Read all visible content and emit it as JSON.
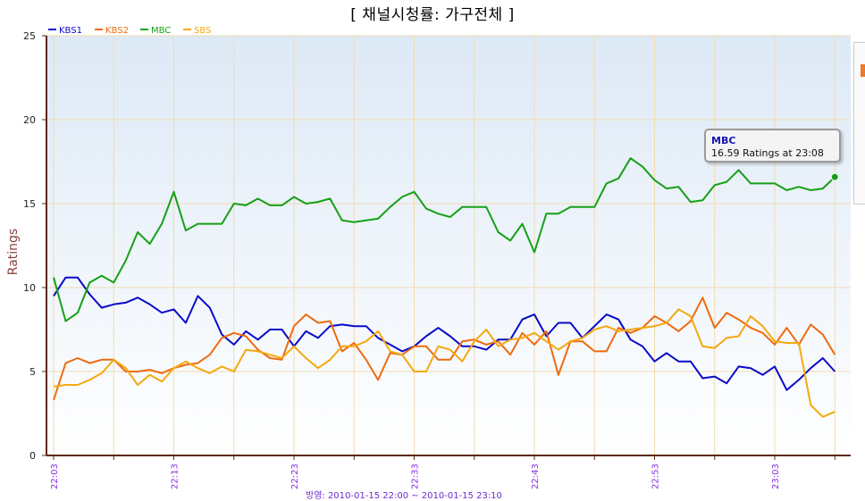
{
  "title": "[ 채널시청률: 가구전체 ]",
  "footer_text": "방영: 2010-01-15 22:00 ~ 2010-01-15 23:10",
  "tooltip": {
    "series": "MBC",
    "text": "16.59 Ratings at 23:08"
  },
  "chart_data": {
    "type": "line",
    "title": "[ 채널시청률: 가구전체 ]",
    "xlabel": "",
    "ylabel": "Ratings",
    "ylim": [
      0,
      25
    ],
    "yticks": [
      0,
      5,
      10,
      15,
      20,
      25
    ],
    "grid": true,
    "legend_position": "top-left",
    "x_start": "22:03",
    "x_interval_minutes": 1,
    "x_tick_labels": [
      "22:03",
      "22:13",
      "22:23",
      "22:33",
      "22:43",
      "22:53",
      "23:03"
    ],
    "series": [
      {
        "name": "KBS1",
        "color": "#0a0ac8",
        "values": [
          9.5,
          10.6,
          10.6,
          9.6,
          8.8,
          9.0,
          9.1,
          9.4,
          9.0,
          8.5,
          8.7,
          7.9,
          9.5,
          8.8,
          7.2,
          6.6,
          7.4,
          6.9,
          7.5,
          7.5,
          6.5,
          7.4,
          7.0,
          7.7,
          7.8,
          7.7,
          7.7,
          7.0,
          6.6,
          6.2,
          6.5,
          7.1,
          7.6,
          7.1,
          6.5,
          6.5,
          6.3,
          6.9,
          6.9,
          8.1,
          8.4,
          7.1,
          7.9,
          7.9,
          7.0,
          7.7,
          8.4,
          8.1,
          6.9,
          6.5,
          5.6,
          6.1,
          5.6,
          5.6,
          4.6,
          4.7,
          4.3,
          5.3,
          5.2,
          4.8,
          5.3,
          3.9,
          4.5,
          5.2,
          5.8,
          5.0
        ]
      },
      {
        "name": "KBS2",
        "color": "#ee6a10",
        "values": [
          3.3,
          5.5,
          5.8,
          5.5,
          5.7,
          5.7,
          5.0,
          5.0,
          5.1,
          4.9,
          5.2,
          5.4,
          5.5,
          6.0,
          7.0,
          7.3,
          7.1,
          6.3,
          5.8,
          5.7,
          7.7,
          8.4,
          7.9,
          8.0,
          6.2,
          6.7,
          5.7,
          4.5,
          6.1,
          6.0,
          6.5,
          6.5,
          5.7,
          5.7,
          6.8,
          6.9,
          6.6,
          6.8,
          6.0,
          7.3,
          6.6,
          7.4,
          4.8,
          6.8,
          6.8,
          6.2,
          6.2,
          7.6,
          7.3,
          7.6,
          8.3,
          7.9,
          7.4,
          8.0,
          9.4,
          7.6,
          8.5,
          8.1,
          7.6,
          7.3,
          6.6,
          7.6,
          6.6,
          7.8,
          7.2,
          6.0
        ]
      },
      {
        "name": "MBC",
        "color": "#16a016",
        "values": [
          10.6,
          8.0,
          8.5,
          10.3,
          10.7,
          10.3,
          11.6,
          13.3,
          12.6,
          13.8,
          15.7,
          13.4,
          13.8,
          13.8,
          13.8,
          15.0,
          14.9,
          15.3,
          14.9,
          14.9,
          15.4,
          15.0,
          15.1,
          15.3,
          14.0,
          13.9,
          14.0,
          14.1,
          14.8,
          15.4,
          15.7,
          14.7,
          14.4,
          14.2,
          14.8,
          14.8,
          14.8,
          13.3,
          12.8,
          13.8,
          12.1,
          14.4,
          14.4,
          14.8,
          14.8,
          14.8,
          16.2,
          16.5,
          17.7,
          17.2,
          16.4,
          15.9,
          16.0,
          15.1,
          15.2,
          16.1,
          16.3,
          17.0,
          16.2,
          16.2,
          16.2,
          15.8,
          16.0,
          15.8,
          15.9,
          16.59
        ]
      },
      {
        "name": "SBS",
        "color": "#f5a810",
        "values": [
          4.1,
          4.2,
          4.2,
          4.5,
          4.9,
          5.7,
          5.2,
          4.2,
          4.8,
          4.4,
          5.2,
          5.6,
          5.2,
          4.9,
          5.3,
          5.0,
          6.3,
          6.2,
          6.0,
          5.8,
          6.5,
          5.8,
          5.2,
          5.7,
          6.5,
          6.5,
          6.8,
          7.4,
          6.2,
          6.0,
          5.0,
          5.0,
          6.5,
          6.3,
          5.6,
          6.8,
          7.5,
          6.5,
          6.9,
          7.0,
          7.3,
          6.8,
          6.3,
          6.8,
          7.0,
          7.5,
          7.7,
          7.4,
          7.5,
          7.6,
          7.7,
          7.9,
          8.7,
          8.3,
          6.5,
          6.4,
          7.0,
          7.1,
          8.3,
          7.7,
          6.8,
          6.7,
          6.7,
          3.0,
          2.3,
          2.6
        ]
      }
    ]
  }
}
